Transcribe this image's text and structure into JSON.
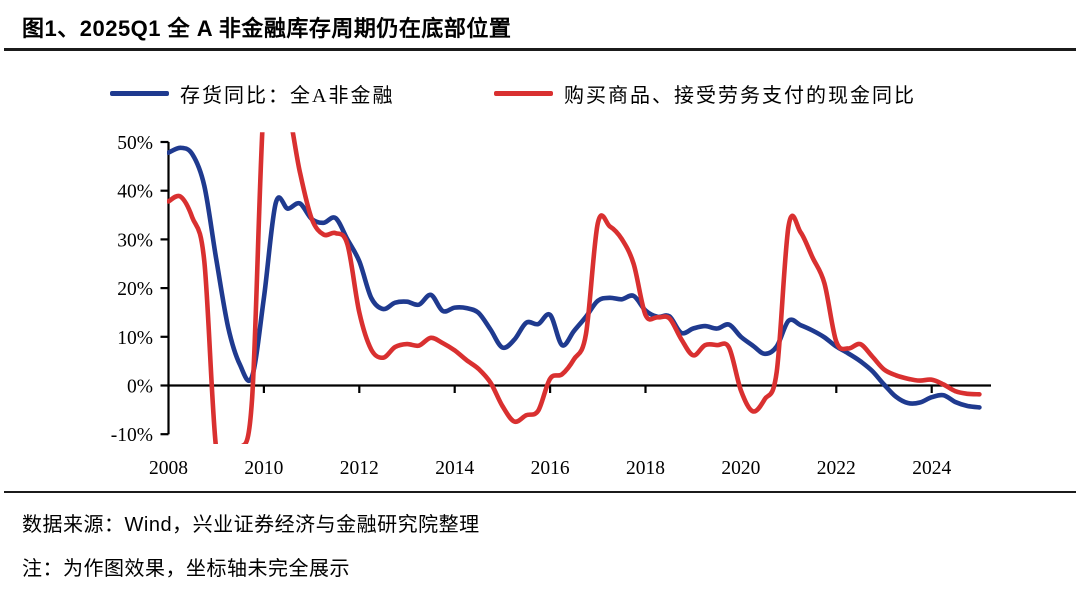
{
  "header": {
    "title": "图1、2025Q1 全 A 非金融库存周期仍在底部位置"
  },
  "legend": {
    "items": [
      {
        "label": "存货同比：全A非金融",
        "color": "#1f3a8f"
      },
      {
        "label": "购买商品、接受劳务支付的现金同比",
        "color": "#d93030"
      }
    ]
  },
  "footer": {
    "source": "数据来源：Wind，兴业证券经济与金融研究院整理",
    "note": "注：为作图效果，坐标轴未完全展示"
  },
  "chart_data": {
    "type": "line",
    "title": "2025Q1 全 A 非金融库存周期仍在底部位置",
    "xlabel": "",
    "ylabel": "",
    "grid": false,
    "legend_position": "top",
    "ylim": [
      -10,
      50
    ],
    "clip_ylim": [
      -12,
      52
    ],
    "y_ticks": [
      50,
      40,
      30,
      20,
      10,
      0,
      -10
    ],
    "y_tick_labels": [
      "50%",
      "40%",
      "30%",
      "20%",
      "10%",
      "0%",
      "-10%"
    ],
    "x_tick_years": [
      2008,
      2010,
      2012,
      2014,
      2016,
      2018,
      2020,
      2022,
      2024
    ],
    "x": [
      2008,
      2008.25,
      2008.5,
      2008.75,
      2009,
      2009.25,
      2009.5,
      2009.75,
      2010,
      2010.25,
      2010.5,
      2010.75,
      2011,
      2011.25,
      2011.5,
      2011.75,
      2012,
      2012.25,
      2012.5,
      2012.75,
      2013,
      2013.25,
      2013.5,
      2013.75,
      2014,
      2014.25,
      2014.5,
      2014.75,
      2015,
      2015.25,
      2015.5,
      2015.75,
      2016,
      2016.25,
      2016.5,
      2016.75,
      2017,
      2017.25,
      2017.5,
      2017.75,
      2018,
      2018.25,
      2018.5,
      2018.75,
      2019,
      2019.25,
      2019.5,
      2019.75,
      2020,
      2020.25,
      2020.5,
      2020.75,
      2021,
      2021.25,
      2021.5,
      2021.75,
      2022,
      2022.25,
      2022.5,
      2022.75,
      2023,
      2023.25,
      2023.5,
      2023.75,
      2024,
      2024.25,
      2024.5,
      2024.75,
      2025
    ],
    "series": [
      {
        "name": "存货同比：全A非金融",
        "color": "#1f3a8f",
        "clipped": false,
        "values": [
          47.8,
          48.8,
          47.5,
          41.0,
          26.0,
          12.0,
          4.2,
          1.8,
          18.0,
          37.5,
          36.3,
          37.4,
          34.2,
          33.4,
          34.4,
          30.0,
          25.5,
          18.0,
          15.7,
          17.0,
          17.2,
          16.6,
          18.6,
          15.3,
          16.0,
          15.9,
          14.9,
          11.5,
          7.8,
          9.4,
          12.9,
          12.6,
          14.5,
          8.3,
          11.2,
          14.1,
          17.4,
          18.0,
          17.7,
          18.4,
          15.4,
          14.1,
          14.2,
          10.8,
          11.7,
          12.2,
          11.7,
          12.5,
          10.0,
          8.2,
          6.5,
          8.0,
          13.3,
          12.4,
          11.3,
          9.9,
          8.0,
          6.6,
          5.0,
          3.0,
          0.2,
          -2.3,
          -3.6,
          -3.5,
          -2.4,
          -2.0,
          -3.4,
          -4.2,
          -4.5
        ]
      },
      {
        "name": "购买商品、接受劳务支付的现金同比",
        "color": "#d93030",
        "clipped": true,
        "values": [
          37.8,
          38.8,
          34.5,
          25.5,
          -13.0,
          -14.0,
          -13.0,
          -3.0,
          58.0,
          60.0,
          57.0,
          44.0,
          34.3,
          31.0,
          31.3,
          29.0,
          15.0,
          7.4,
          5.7,
          7.9,
          8.5,
          8.2,
          9.8,
          8.7,
          7.2,
          5.2,
          3.4,
          0.6,
          -4.2,
          -7.4,
          -6.1,
          -5.2,
          1.4,
          2.3,
          5.4,
          10.5,
          33.3,
          32.7,
          30.1,
          25.0,
          14.5,
          14.0,
          13.8,
          9.5,
          6.2,
          8.3,
          8.3,
          7.8,
          -1.0,
          -5.3,
          -2.8,
          2.8,
          32.8,
          31.5,
          26.3,
          21.0,
          9.0,
          7.6,
          8.5,
          6.0,
          3.3,
          2.1,
          1.4,
          1.0,
          1.2,
          0.2,
          -1.2,
          -1.7,
          -1.8
        ]
      }
    ]
  }
}
